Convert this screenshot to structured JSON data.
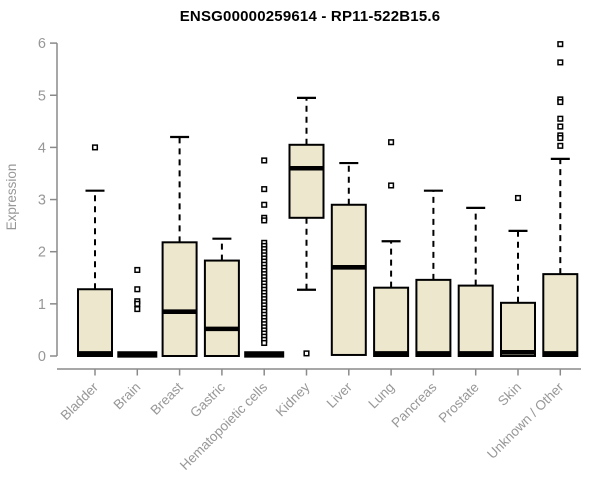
{
  "chart_data": {
    "type": "boxplot",
    "title": "ENSG00000259614 - RP11-522B15.6",
    "ylabel": "Expression",
    "xlabel": "",
    "ylim": [
      0,
      6
    ],
    "yticks": [
      0,
      1,
      2,
      3,
      4,
      5,
      6
    ],
    "grid": false,
    "legend": false,
    "categories": [
      "Bladder",
      "Brain",
      "Breast",
      "Gastric",
      "Hematopoietic cells",
      "Kidney",
      "Liver",
      "Lung",
      "Pancreas",
      "Prostate",
      "Skin",
      "Unknown / Other"
    ],
    "series": [
      {
        "category": "Bladder",
        "whisker_low": 0,
        "q1": 0,
        "median": 0.05,
        "q3": 1.28,
        "whisker_high": 3.17,
        "outliers": [
          4.0
        ]
      },
      {
        "category": "Brain",
        "whisker_low": 0.03,
        "q1": 0.03,
        "median": 0.03,
        "q3": 0.03,
        "whisker_high": 0.03,
        "outliers": [
          1.65,
          1.28,
          1.05,
          1.0,
          0.9
        ]
      },
      {
        "category": "Breast",
        "whisker_low": 0,
        "q1": 0,
        "median": 0.85,
        "q3": 2.18,
        "whisker_high": 4.2,
        "outliers": []
      },
      {
        "category": "Gastric",
        "whisker_low": 0,
        "q1": 0,
        "median": 0.52,
        "q3": 1.83,
        "whisker_high": 2.25,
        "outliers": []
      },
      {
        "category": "Hematopoietic cells",
        "whisker_low": 0.03,
        "q1": 0.03,
        "median": 0.03,
        "q3": 0.03,
        "whisker_high": 0.03,
        "outliers": [
          3.75,
          3.2,
          2.9,
          2.65,
          2.6,
          2.17,
          2.11,
          2.05,
          1.99,
          1.93,
          1.87,
          1.81,
          1.75,
          1.69,
          1.63,
          1.57,
          1.51,
          1.45,
          1.39,
          1.33,
          1.27,
          1.21,
          1.15,
          1.09,
          1.03,
          0.97,
          0.91,
          0.85,
          0.79,
          0.73,
          0.67,
          0.61,
          0.55,
          0.49,
          0.43,
          0.37,
          0.31,
          0.25
        ]
      },
      {
        "category": "Kidney",
        "whisker_low": 1.27,
        "q1": 2.65,
        "median": 3.6,
        "q3": 4.05,
        "whisker_high": 4.95,
        "outliers": [
          0.05
        ]
      },
      {
        "category": "Liver",
        "whisker_low": 0.02,
        "q1": 0.02,
        "median": 1.7,
        "q3": 2.9,
        "whisker_high": 3.7,
        "outliers": []
      },
      {
        "category": "Lung",
        "whisker_low": 0,
        "q1": 0,
        "median": 0.05,
        "q3": 1.31,
        "whisker_high": 2.2,
        "outliers": [
          4.1,
          3.27
        ]
      },
      {
        "category": "Pancreas",
        "whisker_low": 0,
        "q1": 0,
        "median": 0.05,
        "q3": 1.46,
        "whisker_high": 3.17,
        "outliers": []
      },
      {
        "category": "Prostate",
        "whisker_low": 0,
        "q1": 0,
        "median": 0.05,
        "q3": 1.35,
        "whisker_high": 2.84,
        "outliers": []
      },
      {
        "category": "Skin",
        "whisker_low": 0,
        "q1": 0,
        "median": 0.07,
        "q3": 1.02,
        "whisker_high": 2.4,
        "outliers": [
          3.03
        ]
      },
      {
        "category": "Unknown / Other",
        "whisker_low": 0,
        "q1": 0,
        "median": 0.05,
        "q3": 1.57,
        "whisker_high": 3.78,
        "outliers": [
          5.98,
          5.63,
          4.92,
          4.87,
          4.55,
          4.4,
          4.23,
          4.18,
          4.03
        ]
      }
    ],
    "colors": {
      "box_fill": "#ECE7CD",
      "box_border": "#000000",
      "median": "#000000",
      "whisker": "#000000",
      "outlier_stroke": "#000000",
      "outlier_fill": "#FFFFFF",
      "axis": "#8A8A8A",
      "tick_label": "#979797",
      "title": "#000000",
      "background": "#FFFFFF"
    }
  }
}
